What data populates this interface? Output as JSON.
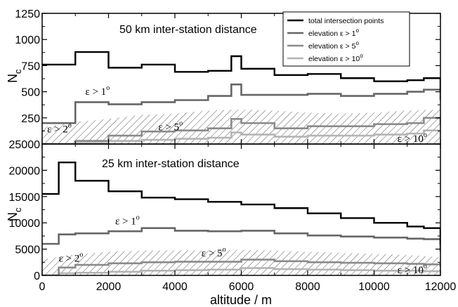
{
  "chart_data": [
    {
      "type": "line",
      "title": "50 km inter-station distance",
      "ylabel": "N",
      "ylabel_sub": "c",
      "xlim": [
        0,
        12000
      ],
      "ylim": [
        0,
        1250
      ],
      "yticks": [
        0,
        250,
        500,
        750,
        1000,
        1250
      ],
      "ytick_labels": [
        "0",
        "250",
        "500",
        "750",
        "1000",
        "1250"
      ],
      "x": [
        0,
        1000,
        2000,
        3000,
        4000,
        5000,
        5700,
        6000,
        7000,
        8000,
        9000,
        10000,
        11000,
        11500,
        12000
      ],
      "legend": {
        "placement": "top-right",
        "entries": [
          {
            "text": "total intersection points",
            "sup": "",
            "series": 0
          },
          {
            "text": "elevation ε > 1",
            "sup": "o",
            "series": 1
          },
          {
            "text": "elevation ε > 5",
            "sup": "o",
            "series": 2
          },
          {
            "text": "elevation ε > 10",
            "sup": "o",
            "series": 3
          }
        ]
      },
      "series": [
        {
          "name": "total intersection points",
          "color": "#000000",
          "values": [
            760,
            880,
            730,
            760,
            690,
            700,
            840,
            720,
            660,
            670,
            630,
            600,
            610,
            630,
            500
          ]
        },
        {
          "name": "elevation ε > 1°",
          "color": "#666666",
          "values": [
            200,
            400,
            380,
            400,
            420,
            460,
            570,
            470,
            470,
            480,
            460,
            480,
            500,
            520,
            420
          ]
        },
        {
          "name": "elevation ε > 5°",
          "color": "#8a8a8a",
          "values": [
            0,
            30,
            80,
            120,
            130,
            150,
            240,
            200,
            150,
            170,
            170,
            190,
            200,
            250,
            180
          ]
        },
        {
          "name": "elevation ε > 10°",
          "color": "#b4b4b4",
          "values": [
            0,
            10,
            30,
            40,
            50,
            60,
            110,
            90,
            70,
            80,
            80,
            90,
            100,
            130,
            100
          ]
        }
      ],
      "hatch_band": {
        "x": [
          0,
          1000,
          2000,
          3000,
          4000,
          5000,
          6000,
          7000,
          8000,
          9000,
          10000,
          11000,
          12000
        ],
        "values": [
          160,
          210,
          240,
          280,
          290,
          320,
          330,
          320,
          300,
          290,
          300,
          320,
          330
        ]
      },
      "annotations": [
        {
          "text": "ε > 1",
          "sup": "o",
          "x": 1300,
          "y": 470
        },
        {
          "text": "ε > 2",
          "sup": "o",
          "x": 150,
          "y": 110
        },
        {
          "text": "ε > 5",
          "sup": "o",
          "x": 3500,
          "y": 130
        },
        {
          "text": "ε > 10",
          "sup": "o",
          "x": 10700,
          "y": 20
        }
      ]
    },
    {
      "type": "line",
      "title": "25 km inter-station distance",
      "ylabel": "N",
      "ylabel_sub": "c",
      "xlabel": "altitude / m",
      "xlim": [
        0,
        12000
      ],
      "ylim": [
        0,
        25000
      ],
      "yticks": [
        0,
        5000,
        10000,
        15000,
        20000,
        25000
      ],
      "ytick_labels": [
        "0",
        "5000",
        "10000",
        "15000",
        "20000",
        "25000"
      ],
      "xticks": [
        0,
        2000,
        4000,
        6000,
        8000,
        10000,
        12000
      ],
      "xtick_labels": [
        "0",
        "2000",
        "4000",
        "6000",
        "8000",
        "10000",
        "12000"
      ],
      "x": [
        0,
        500,
        1000,
        2000,
        3000,
        4000,
        5000,
        6000,
        7000,
        8000,
        9000,
        10000,
        11000,
        11500,
        12000
      ],
      "series": [
        {
          "name": "total intersection points",
          "color": "#000000",
          "values": [
            15500,
            21500,
            18000,
            16000,
            14800,
            14500,
            14000,
            13500,
            12800,
            11800,
            10900,
            10000,
            9300,
            9000,
            5800
          ]
        },
        {
          "name": "elevation ε > 1°",
          "color": "#666666",
          "values": [
            6000,
            7800,
            8000,
            8400,
            9000,
            8500,
            8400,
            8500,
            8000,
            7600,
            7400,
            7200,
            7000,
            6900,
            4500
          ]
        },
        {
          "name": "elevation ε > 5°",
          "color": "#8a8a8a",
          "values": [
            0,
            1500,
            2000,
            2300,
            2500,
            2600,
            2600,
            3000,
            2700,
            2500,
            2400,
            2300,
            2200,
            2100,
            1600
          ]
        },
        {
          "name": "elevation ε > 10°",
          "color": "#b4b4b4",
          "values": [
            0,
            400,
            500,
            700,
            900,
            1000,
            1100,
            1400,
            1200,
            1100,
            1000,
            900,
            900,
            800,
            600
          ]
        }
      ],
      "hatch_band": {
        "x": [
          0,
          1000,
          2000,
          3000,
          4000,
          5000,
          6000,
          7000,
          8000,
          9000,
          10000,
          11000,
          12000
        ],
        "values": [
          3000,
          4000,
          4500,
          4700,
          4800,
          4700,
          4900,
          4700,
          4500,
          4300,
          4100,
          3900,
          3500
        ]
      },
      "annotations": [
        {
          "text": "ε > 1",
          "sup": "o",
          "x": 2200,
          "y": 9700
        },
        {
          "text": "ε > 2",
          "sup": "o",
          "x": 500,
          "y": 2600
        },
        {
          "text": "ε > 5",
          "sup": "o",
          "x": 4800,
          "y": 3600
        },
        {
          "text": "ε > 10",
          "sup": "o",
          "x": 10700,
          "y": 400
        }
      ]
    }
  ]
}
